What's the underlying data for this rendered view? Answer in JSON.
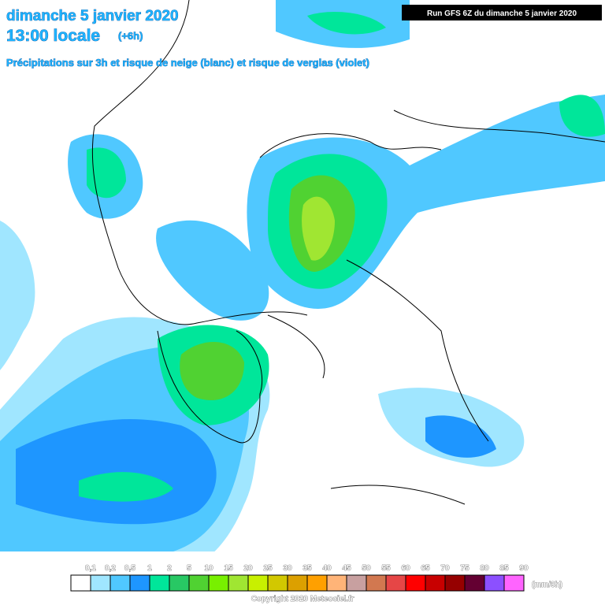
{
  "header": {
    "date": "dimanche 5 janvier 2020",
    "time": "13:00 locale",
    "offset": "(+6h)",
    "subtitle": "Précipitations sur 3h et risque de neige (blanc) et risque de verglas (violet)",
    "run": "Run GFS 6Z du dimanche 5 janvier 2020"
  },
  "legend": {
    "labels": [
      "0,1",
      "0,2",
      "0,5",
      "1",
      "2",
      "5",
      "10",
      "15",
      "20",
      "25",
      "30",
      "35",
      "40",
      "45",
      "50",
      "55",
      "60",
      "65",
      "70",
      "75",
      "80",
      "85",
      "90"
    ],
    "colors": [
      "#ffffff",
      "#a0e6ff",
      "#50c8ff",
      "#1e96ff",
      "#00e69a",
      "#28c864",
      "#50d232",
      "#78f000",
      "#a0e632",
      "#c8f000",
      "#d2c800",
      "#dca000",
      "#ffa000",
      "#ffb478",
      "#c8a0a0",
      "#d27850",
      "#e64646",
      "#ff0000",
      "#c80000",
      "#960000",
      "#640032",
      "#8c50ff",
      "#ff64ff"
    ],
    "unit": "(mm/3h)"
  },
  "footer": {
    "copyright": "Copyright 2020 Meteociel.fr"
  }
}
